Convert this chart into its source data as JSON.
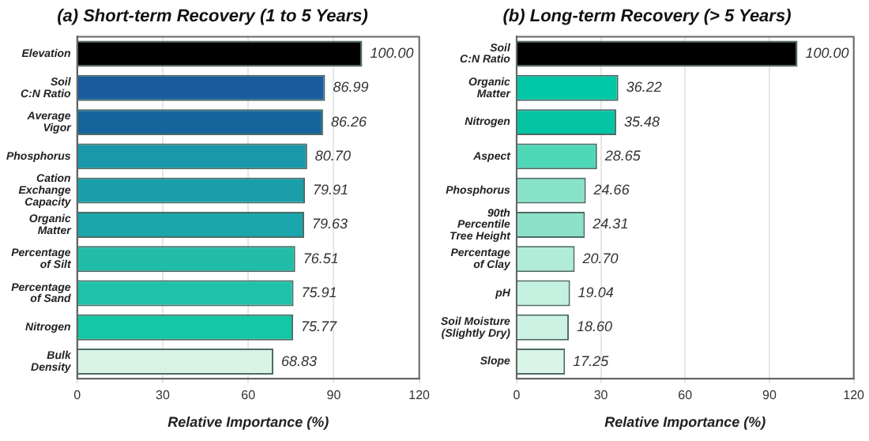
{
  "chart_data": [
    {
      "type": "bar",
      "orientation": "horizontal",
      "title": "(a) Short-term Recovery (1 to 5 Years)",
      "xlabel": "Relative Importance (%)",
      "categories": [
        "Elevation",
        "Soil\nC:N Ratio",
        "Average\nVigor",
        "Phosphorus",
        "Cation\nExchange\nCapacity",
        "Organic\nMatter",
        "Percentage\nof Silt",
        "Percentage\nof Sand",
        "Nitrogen",
        "Bulk\nDensity"
      ],
      "values": [
        100.0,
        86.99,
        86.26,
        80.7,
        79.91,
        79.63,
        76.51,
        75.91,
        75.77,
        68.83
      ],
      "colors": [
        "#000000",
        "#1a5c9c",
        "#17649c",
        "#1a97a8",
        "#1a9faa",
        "#1aa6aa",
        "#22bda8",
        "#1fc2a8",
        "#12c8a6",
        "#d6f3e4"
      ],
      "value_labels": [
        "100.00",
        "86.99",
        "86.26",
        "80.70",
        "79.91",
        "79.63",
        "76.51",
        "75.91",
        "75.77",
        "68.83"
      ],
      "xlim": [
        0,
        120
      ],
      "xticks": [
        0,
        30,
        60,
        90,
        120
      ],
      "grid": "x"
    },
    {
      "type": "bar",
      "orientation": "horizontal",
      "title": "(b) Long-term Recovery (> 5 Years)",
      "xlabel": "Relative Importance (%)",
      "categories": [
        "Soil\nC:N Ratio",
        "Organic\nMatter",
        "Nitrogen",
        "Aspect",
        "Phosphorus",
        "90th\nPercentile\nTree Height",
        "Percentage\nof Clay",
        "pH",
        "Soil Moisture\n(Slightly Dry)",
        "Slope"
      ],
      "values": [
        100.0,
        36.22,
        35.48,
        28.65,
        24.66,
        24.31,
        20.7,
        19.04,
        18.6,
        17.25
      ],
      "colors": [
        "#000000",
        "#00c8a6",
        "#05c4a4",
        "#4fd8b8",
        "#88e2c8",
        "#8ce2c8",
        "#b0ecd8",
        "#c4f0df",
        "#ccf2e3",
        "#d8f5e8"
      ],
      "value_labels": [
        "100.00",
        "36.22",
        "35.48",
        "28.65",
        "24.66",
        "24.31",
        "20.70",
        "19.04",
        "18.60",
        "17.25"
      ],
      "xlim": [
        0,
        120
      ],
      "xticks": [
        0,
        30,
        60,
        90,
        120
      ],
      "grid": "x"
    }
  ]
}
